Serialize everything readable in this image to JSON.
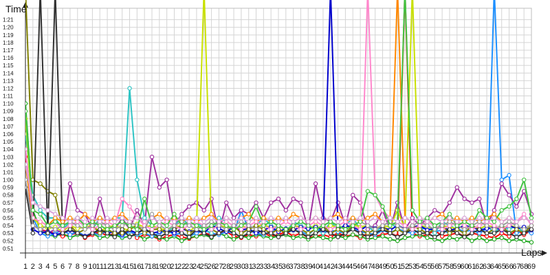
{
  "chart_data": {
    "type": "line",
    "title": "",
    "xlabel": "Laps",
    "ylabel": "Time",
    "grid": true,
    "legend": "none",
    "x": [
      1,
      2,
      3,
      4,
      5,
      6,
      7,
      8,
      9,
      10,
      11,
      12,
      13,
      14,
      15,
      16,
      17,
      18,
      19,
      20,
      21,
      22,
      23,
      24,
      25,
      26,
      27,
      28,
      29,
      30,
      31,
      32,
      33,
      34,
      35,
      36,
      37,
      38,
      39,
      40,
      41,
      42,
      43,
      44,
      45,
      46,
      47,
      48,
      49,
      50,
      51,
      52,
      53,
      54,
      55,
      56,
      57,
      58,
      59,
      60,
      61,
      62,
      63,
      64,
      65,
      66,
      67,
      68,
      69
    ],
    "xlim": [
      1,
      69
    ],
    "ylim": [
      50.4,
      82.5
    ],
    "y_ticks": [
      51,
      52,
      53,
      54,
      55,
      56,
      57,
      58,
      59,
      60,
      61,
      62,
      63,
      64,
      65,
      66,
      67,
      68,
      69,
      70,
      71,
      72,
      73,
      74,
      75,
      76,
      77,
      78,
      79,
      80,
      81
    ],
    "x_tick_labels": [
      "1",
      "2",
      "3",
      "4",
      "5",
      "6",
      "7",
      "8",
      "9",
      "10",
      "11",
      "12",
      "13",
      "14",
      "15",
      "16",
      "17",
      "18",
      "19",
      "20",
      "21",
      "22",
      "23",
      "24",
      "25",
      "26",
      "27",
      "28",
      "29",
      "30",
      "31",
      "32",
      "33",
      "34",
      "35",
      "36",
      "37",
      "38",
      "39",
      "40",
      "41",
      "42",
      "43",
      "44",
      "45",
      "46",
      "47",
      "48",
      "49",
      "50",
      "51",
      "52",
      "53",
      "54",
      "55",
      "56",
      "57",
      "58",
      "59",
      "60",
      "61",
      "62",
      "63",
      "64",
      "65",
      "66",
      "67",
      "68",
      "69"
    ],
    "y_tick_labels": [
      "0:51",
      "0:52",
      "0:53",
      "0:54",
      "0:55",
      "0:56",
      "0:57",
      "0:58",
      "0:59",
      "1:00",
      "1:01",
      "1:02",
      "1:03",
      "1:04",
      "1:05",
      "1:06",
      "1:07",
      "1:08",
      "1:09",
      "1:10",
      "1:11",
      "1:12",
      "1:13",
      "1:14",
      "1:15",
      "1:16",
      "1:17",
      "1:18",
      "1:19",
      "1:20",
      "1:21"
    ],
    "series": [
      {
        "color": "#ff0000",
        "values": [
          63,
          54,
          53.5,
          53.2,
          53,
          52.6,
          52.8,
          53,
          52.4,
          52.8,
          53.2,
          52.6,
          53,
          52.8,
          53.4,
          52.4,
          52.8,
          52.6,
          52.2,
          52.6,
          52.8,
          52.5,
          52.3,
          52.6,
          53,
          52.8,
          53,
          53.2,
          52.6,
          52.4,
          52.8,
          52.6,
          53,
          52.6,
          52.8,
          53.2,
          52.6,
          53,
          52.4,
          52.6,
          52.8,
          52.5,
          53,
          52.6,
          52.8,
          52.4,
          53,
          52.6,
          52.8,
          53,
          52.6,
          85,
          53,
          52.6,
          52.8,
          53.4,
          52.6,
          52.8,
          53,
          52.6,
          53,
          52.8,
          52.6,
          52.4,
          53,
          52.6,
          53.4,
          52.8,
          53.4
        ]
      },
      {
        "color": "#22aa22",
        "values": [
          70,
          56,
          53.4,
          52.8,
          52.6,
          53,
          52.4,
          52.8,
          52.6,
          53,
          52.4,
          52.6,
          52.8,
          52.4,
          52.6,
          52.8,
          52.2,
          52.6,
          52.4,
          52.2,
          52.6,
          52,
          52.4,
          52.6,
          52.8,
          52.4,
          53,
          52.6,
          52.2,
          52.6,
          52.4,
          52.8,
          52.6,
          52.4,
          52.6,
          52.8,
          52.4,
          52.6,
          52.2,
          52.6,
          52.4,
          52.2,
          52.6,
          52.4,
          52.8,
          52.6,
          52.2,
          52.4,
          52.6,
          52.2,
          52,
          52.4,
          52.6,
          52.8,
          52.4,
          52.2,
          52,
          52.4,
          52.2,
          52.6,
          52,
          52.4,
          52,
          52.2,
          52.4,
          52,
          52.2,
          52,
          51.8
        ]
      },
      {
        "color": "#1e90ff",
        "values": [
          68,
          55,
          53,
          52.6,
          53,
          53.4,
          52.8,
          53.2,
          52.6,
          53,
          52.8,
          53.4,
          53,
          52.6,
          53.2,
          52.8,
          53,
          52.6,
          53,
          53.4,
          52.8,
          53,
          52.6,
          53,
          53.4,
          53,
          52.8,
          53.2,
          53,
          56,
          53.4,
          53,
          52.8,
          53.2,
          53.6,
          53,
          53.4,
          53.2,
          52.8,
          53.6,
          53,
          53.4,
          53.2,
          53,
          53.6,
          53.2,
          53,
          52.8,
          53.4,
          53,
          53.6,
          53.2,
          53,
          53.4,
          53.8,
          53.2,
          53.4,
          53,
          53.6,
          53.2,
          53.4,
          53,
          53.6,
          85,
          60,
          60.6,
          53,
          53.4,
          53
        ]
      },
      {
        "color": "#a033a0",
        "values": [
          64,
          54,
          53.5,
          53,
          53.5,
          53,
          59.5,
          56,
          55.5,
          53.5,
          57.5,
          54,
          53.5,
          55,
          53.5,
          56,
          54,
          63,
          59,
          60,
          54,
          55.5,
          56.5,
          57,
          56,
          57.5,
          53,
          57,
          55,
          56,
          55.5,
          57,
          55,
          57,
          57.5,
          56,
          57.5,
          57,
          53.5,
          59.5,
          55,
          54.5,
          57,
          54,
          58,
          57,
          53.5,
          54,
          56,
          53.5,
          57,
          53.5,
          55,
          54,
          55,
          56,
          55.5,
          57,
          59,
          57.5,
          57,
          57.5,
          54,
          56,
          59.5,
          58,
          56.5,
          58.5,
          55.5
        ]
      },
      {
        "color": "#2ec4c4",
        "values": [
          66,
          58,
          56,
          55,
          55,
          53.5,
          54.5,
          55,
          54,
          53.5,
          55,
          54.5,
          55,
          55,
          72,
          60,
          55,
          54,
          53.5,
          53,
          54,
          55,
          54,
          54.5,
          53.5,
          53,
          55,
          54.5,
          54,
          53,
          53.5,
          54,
          55,
          54,
          53.5,
          53,
          54.5,
          54,
          53.5,
          54,
          53,
          54.5,
          53.5,
          54,
          55,
          53.5,
          54,
          53,
          54,
          54.5,
          53.5,
          53,
          54,
          53.5,
          54,
          53,
          54.5,
          54,
          53.5,
          53,
          54,
          53.5,
          54,
          53,
          54,
          53.5,
          54,
          53,
          54
        ]
      },
      {
        "color": "#c8e000",
        "values": [
          68,
          55,
          54,
          53.6,
          53.8,
          53.2,
          54,
          53.6,
          53.8,
          54,
          53.2,
          53.8,
          54,
          53.6,
          53.4,
          54.2,
          53.8,
          54,
          53.6,
          53.4,
          54,
          53.8,
          53.2,
          54,
          85,
          53.6,
          54,
          53.8,
          53.4,
          54,
          53.6,
          53.8,
          54.2,
          53.6,
          54,
          53.4,
          54,
          53.8,
          53.6,
          54,
          53.4,
          54,
          53.8,
          53.6,
          54.2,
          53.8,
          54,
          53.6,
          54,
          53.8,
          56,
          53.6,
          85,
          54,
          53.8,
          53.6,
          54,
          53.8,
          53.6,
          54,
          53.8,
          53.6,
          54,
          53.8,
          53.6,
          54,
          53.8,
          53.6,
          54
        ]
      },
      {
        "color": "#0000cc",
        "values": [
          59,
          53.5,
          53,
          53.2,
          52.8,
          53,
          53.4,
          53,
          52.6,
          53,
          53.4,
          53,
          53.2,
          52.8,
          53.4,
          53,
          53.6,
          53,
          53.2,
          53.4,
          53,
          53.6,
          53.2,
          53.4,
          53,
          54,
          53.6,
          53.2,
          53.8,
          53.4,
          53.6,
          53,
          53.4,
          53.8,
          53.2,
          53.6,
          53.4,
          53.8,
          53.6,
          53.8,
          53.4,
          85,
          53.6,
          54,
          53.8,
          53.4,
          54,
          53.6,
          53.8,
          53.4,
          54,
          53.6,
          53.8,
          54,
          53.4,
          53.6,
          53.8,
          53.4,
          53.6,
          54,
          53.8,
          53.4,
          53.6,
          53.8,
          53.4,
          54,
          53.6,
          53.8,
          53.4
        ]
      },
      {
        "color": "#808000",
        "values": [
          85,
          60,
          59.5,
          58.5,
          58,
          53.5,
          54,
          53,
          53.5,
          54,
          53,
          53.5,
          53,
          53,
          53.5,
          54,
          53,
          53.5,
          53.5,
          53,
          53.5,
          54,
          53,
          53.5,
          54,
          53.5,
          53,
          53.5,
          54,
          53,
          53.5,
          54,
          53.5,
          53,
          53.5,
          53,
          54,
          53.5,
          53,
          53.5,
          54,
          53,
          53.5,
          53,
          54,
          53.5,
          53,
          53.5,
          54,
          53,
          53.5,
          53,
          54,
          53.5,
          53,
          53.5,
          54,
          53,
          53.5,
          53,
          54,
          53.5,
          53,
          53.5,
          54,
          53,
          53.5,
          53,
          54
        ]
      },
      {
        "color": "#333333",
        "values": [
          59,
          53,
          85,
          53,
          85,
          53,
          53.5,
          53,
          52.5,
          53,
          53.5,
          53,
          52.5,
          53.5,
          52.5,
          53,
          53.5,
          53,
          52.5,
          53,
          53.5,
          53,
          52.5,
          53.5,
          53,
          52.5,
          53,
          53.5,
          53,
          52.5,
          53,
          53.5,
          53,
          53,
          52.5,
          53,
          53.5,
          53,
          52.5,
          53,
          53.5,
          53,
          52.5,
          53,
          53.5,
          53,
          52.5,
          53,
          53.5,
          53,
          52.5,
          53,
          53.5,
          53,
          53,
          52.5,
          53,
          53.5,
          53,
          52.5,
          53,
          53.5,
          53,
          53,
          53.5,
          53,
          52.5,
          53,
          53.5
        ]
      },
      {
        "color": "#ff8800",
        "values": [
          62,
          55,
          54.5,
          54,
          55,
          54.5,
          55,
          54.5,
          55.5,
          54.5,
          55,
          54.5,
          55,
          55.5,
          54.5,
          55,
          54.5,
          55,
          55.5,
          54.5,
          55,
          54.5,
          55,
          54.5,
          55,
          55.5,
          54.5,
          55,
          54.5,
          55,
          55.5,
          54.5,
          55,
          54.5,
          55,
          54.5,
          55.5,
          55,
          54.5,
          55,
          54.5,
          55,
          55.5,
          54.5,
          55,
          54.5,
          55,
          55.5,
          54.5,
          55,
          85,
          55,
          54.5,
          55,
          54.5,
          55,
          55.5,
          54.5,
          55,
          54.5,
          55,
          54.5,
          55,
          55.5,
          54.5,
          55,
          54.5,
          55,
          54.5
        ]
      },
      {
        "color": "#ff88cc",
        "values": [
          64,
          55,
          54.5,
          54,
          54.5,
          53.5,
          54,
          54.5,
          54,
          53.5,
          54,
          54.5,
          54,
          57.5,
          56.5,
          55,
          54,
          53.5,
          54,
          54.5,
          54,
          53.5,
          54,
          54.5,
          54,
          53.5,
          54,
          54.5,
          54,
          53.5,
          54,
          54.5,
          54,
          53.5,
          54,
          54.5,
          54,
          53.5,
          54,
          54.5,
          54,
          53.5,
          54,
          54.5,
          54,
          53.5,
          85,
          58,
          56,
          55,
          54.5,
          54,
          53.5,
          54,
          54.5,
          54,
          53.5,
          54,
          54.5,
          54,
          53.5,
          54,
          54.5,
          54,
          53.5,
          54,
          54.5,
          55.5,
          54
        ]
      },
      {
        "color": "#9a9a9a",
        "values": [
          60,
          54,
          53.5,
          54,
          53.5,
          54,
          54.5,
          54,
          53.5,
          54,
          54.5,
          54,
          53.5,
          54,
          54.5,
          54,
          53.5,
          55.5,
          54,
          53.5,
          54,
          54.5,
          54,
          53.5,
          54,
          54.5,
          54,
          53.5,
          54,
          54.5,
          54,
          53.5,
          54,
          54.5,
          54,
          53.5,
          54,
          54.5,
          54,
          53.5,
          54,
          54.5,
          54,
          53.5,
          54,
          54.5,
          54,
          53.5,
          54,
          54.5,
          54,
          53.5,
          54,
          54.5,
          54,
          53.5,
          54,
          54.5,
          54,
          53.5,
          54,
          54.5,
          54,
          53.5,
          54,
          54.5,
          54,
          53.5,
          54
        ]
      },
      {
        "color": "#44c444",
        "values": [
          69,
          56,
          55.5,
          54,
          54.5,
          54,
          54.5,
          55,
          54,
          54.5,
          54,
          53.5,
          54,
          54.5,
          54,
          53.5,
          57.5,
          54,
          54.5,
          54,
          55.5,
          54,
          54.5,
          54,
          53.5,
          54,
          54.5,
          54,
          53.5,
          54,
          54.5,
          56.5,
          54,
          54.5,
          54,
          53.5,
          54,
          54.5,
          54,
          53.5,
          54,
          54.5,
          54,
          53.5,
          54,
          54.5,
          58.5,
          58,
          56.5,
          54,
          54.5,
          85,
          56,
          54.5,
          55,
          54,
          54.5,
          55.5,
          54,
          54.5,
          54,
          56,
          55,
          54.5,
          56,
          56.5,
          57.5,
          60,
          55
        ]
      },
      {
        "color": "#d8a0d8",
        "values": [
          62,
          57,
          56.5,
          56,
          55.5,
          55,
          54.5,
          55,
          54.5,
          55,
          54.5,
          55,
          54.5,
          55,
          54.5,
          55,
          54.5,
          55,
          54.5,
          55,
          54.5,
          55,
          54.5,
          55,
          54.5,
          55,
          54.5,
          55,
          54.5,
          55,
          54.5,
          55,
          54.5,
          55,
          54.5,
          55,
          54.5,
          55,
          54.5,
          55,
          54.5,
          55,
          54.5,
          55,
          54.5,
          55,
          54.5,
          55,
          54.5,
          55,
          54.5,
          55,
          54.5,
          55,
          54.5,
          55,
          54.5,
          55,
          54.5,
          55,
          54.5,
          55,
          54.5,
          55,
          54.5,
          55,
          54.5,
          55,
          54.5
        ]
      }
    ]
  }
}
